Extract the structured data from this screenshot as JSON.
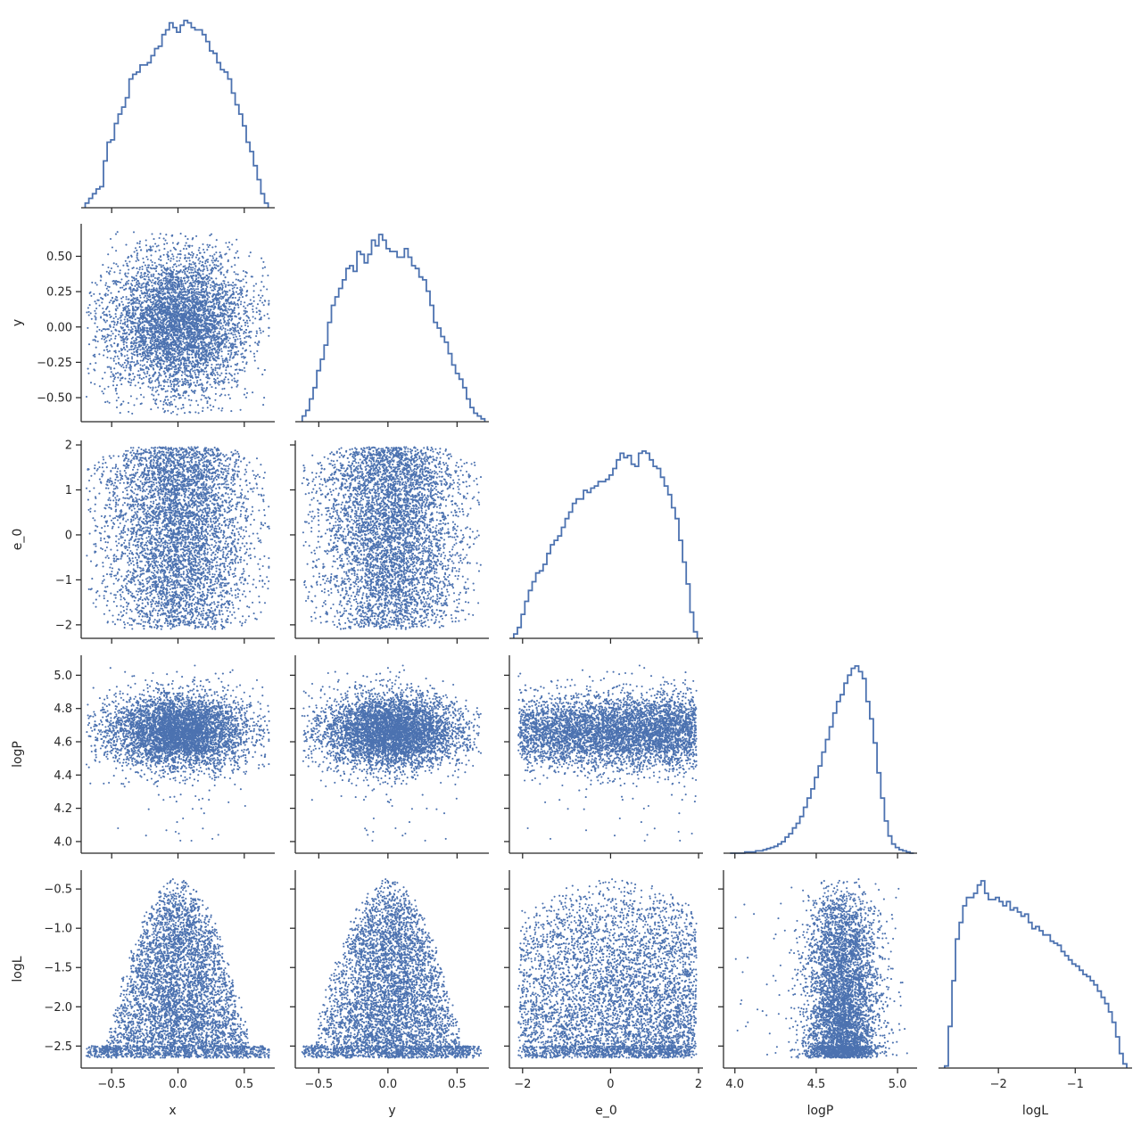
{
  "chart_data": {
    "type": "corner-plot",
    "variables": [
      "x",
      "y",
      "e_0",
      "logP",
      "logL"
    ],
    "axis_labels": {
      "x_bottom": [
        "x",
        "y",
        "e_0",
        "logP",
        "logL"
      ],
      "y_left": [
        "",
        "y",
        "e_0",
        "logP",
        "logL"
      ]
    },
    "ranges": {
      "x": [
        -0.73,
        0.73
      ],
      "y": [
        -0.67,
        0.73
      ],
      "e_0": [
        -2.3,
        2.1
      ],
      "logP": [
        3.93,
        5.12
      ],
      "logL": [
        -2.78,
        -0.26
      ]
    },
    "ticks": {
      "x": {
        "values": [
          -0.5,
          0.0,
          0.5
        ],
        "labels": [
          "−0.5",
          "0.0",
          "0.5"
        ]
      },
      "x_left": {
        "values": [],
        "labels": []
      },
      "y": {
        "values": [
          -0.5,
          0.0,
          0.5
        ],
        "labels": [
          "−0.5",
          "0.0",
          "0.5"
        ]
      },
      "y_left": {
        "values": [
          -0.5,
          -0.25,
          0.0,
          0.25,
          0.5
        ],
        "labels": [
          "−0.50",
          "−0.25",
          "0.00",
          "0.25",
          "0.50"
        ]
      },
      "e_0": {
        "values": [
          -2,
          0,
          2
        ],
        "labels": [
          "−2",
          "0",
          "2"
        ]
      },
      "e_0_left": {
        "values": [
          -2,
          -1,
          0,
          1,
          2
        ],
        "labels": [
          "−2",
          "−1",
          "0",
          "1",
          "2"
        ]
      },
      "logP": {
        "values": [
          4.0,
          4.5,
          5.0
        ],
        "labels": [
          "4.0",
          "4.5",
          "5.0"
        ]
      },
      "logP_left": {
        "values": [
          4.0,
          4.2,
          4.4,
          4.6,
          4.8,
          5.0
        ],
        "labels": [
          "4.0",
          "4.2",
          "4.4",
          "4.6",
          "4.8",
          "5.0"
        ]
      },
      "logL": {
        "values": [
          -2,
          -1
        ],
        "labels": [
          "−2",
          "−1"
        ]
      },
      "logL_left": {
        "values": [
          -2.5,
          -2.0,
          -1.5,
          -1.0,
          -0.5
        ],
        "labels": [
          "−2.5",
          "−2.0",
          "−1.5",
          "−1.0",
          "−0.5"
        ]
      }
    },
    "histograms": {
      "x": {
        "edges_range": [
          -0.7,
          0.68
        ],
        "bins": 50,
        "counts": [
          2,
          4,
          6,
          8,
          9,
          20,
          28,
          29,
          36,
          40,
          43,
          47,
          55,
          57,
          58,
          61,
          61,
          62,
          65,
          68,
          69,
          74,
          76,
          79,
          77,
          75,
          78,
          80,
          79,
          77,
          76,
          76,
          74,
          71,
          67,
          66,
          62,
          59,
          58,
          55,
          49,
          44,
          40,
          35,
          28,
          24,
          18,
          12,
          6,
          2
        ]
      },
      "y": {
        "edges_range": [
          -0.62,
          0.7
        ],
        "bins": 50,
        "counts": [
          2,
          4,
          8,
          12,
          18,
          22,
          27,
          35,
          41,
          44,
          47,
          50,
          54,
          55,
          53,
          60,
          59,
          56,
          59,
          64,
          62,
          66,
          64,
          61,
          60,
          60,
          58,
          58,
          61,
          58,
          55,
          54,
          51,
          50,
          46,
          41,
          35,
          33,
          30,
          28,
          24,
          20,
          17,
          15,
          12,
          8,
          5,
          3,
          2,
          1
        ]
      },
      "e_0": {
        "edges_range": [
          -2.2,
          1.97
        ],
        "bins": 50,
        "counts": [
          2,
          5,
          11,
          17,
          22,
          26,
          30,
          31,
          34,
          39,
          43,
          45,
          47,
          51,
          55,
          58,
          62,
          64,
          64,
          68,
          67,
          69,
          70,
          72,
          72,
          73,
          75,
          78,
          82,
          85,
          83,
          84,
          80,
          79,
          85,
          86,
          85,
          82,
          79,
          78,
          74,
          70,
          66,
          60,
          55,
          45,
          35,
          25,
          12,
          3
        ]
      },
      "logP": {
        "edges_range": [
          3.97,
          5.1
        ],
        "bins": 50,
        "counts": [
          0,
          0,
          0,
          0,
          1,
          1,
          1,
          2,
          2,
          3,
          4,
          5,
          6,
          8,
          10,
          14,
          17,
          22,
          26,
          32,
          40,
          48,
          56,
          66,
          76,
          88,
          99,
          110,
          122,
          132,
          138,
          148,
          155,
          161,
          163,
          158,
          152,
          132,
          117,
          96,
          70,
          48,
          28,
          15,
          8,
          5,
          3,
          2,
          1,
          0
        ]
      },
      "logL": {
        "edges_range": [
          -2.7,
          -0.33
        ],
        "bins": 50,
        "counts": [
          1,
          20,
          42,
          62,
          70,
          78,
          82,
          82,
          84,
          88,
          90,
          84,
          81,
          81,
          82,
          80,
          78,
          80,
          76,
          77,
          75,
          73,
          74,
          70,
          67,
          68,
          66,
          64,
          64,
          61,
          60,
          59,
          56,
          54,
          52,
          50,
          49,
          47,
          45,
          44,
          42,
          40,
          37,
          34,
          31,
          27,
          22,
          15,
          7,
          2
        ]
      }
    },
    "scatter": {
      "n_points": 5000,
      "marker_color": "#4c72b0",
      "panels": [
        [
          "y",
          "x"
        ],
        [
          "e_0",
          "x"
        ],
        [
          "e_0",
          "y"
        ],
        [
          "logP",
          "x"
        ],
        [
          "logP",
          "y"
        ],
        [
          "logP",
          "e_0"
        ],
        [
          "logL",
          "x"
        ],
        [
          "logL",
          "y"
        ],
        [
          "logL",
          "e_0"
        ],
        [
          "logL",
          "logP"
        ]
      ],
      "relations": {
        "x": "normal(mean 0.0, sd 0.27), |x| < 0.7",
        "y": "normal(mean 0.02, sd 0.26), |y| < 0.68",
        "e_0": "in [-2.1, 1.95], broadest near 0",
        "logP": "normal(mean 4.66, sd 0.11)",
        "logL": "between -2.65 and about -0.35 − 7·(x² + y²) − 0.1·e_0²"
      }
    },
    "grid": false,
    "legend": "none"
  },
  "colors": {
    "series": "#4c72b0",
    "axis": "#262626",
    "background": "#ffffff"
  }
}
